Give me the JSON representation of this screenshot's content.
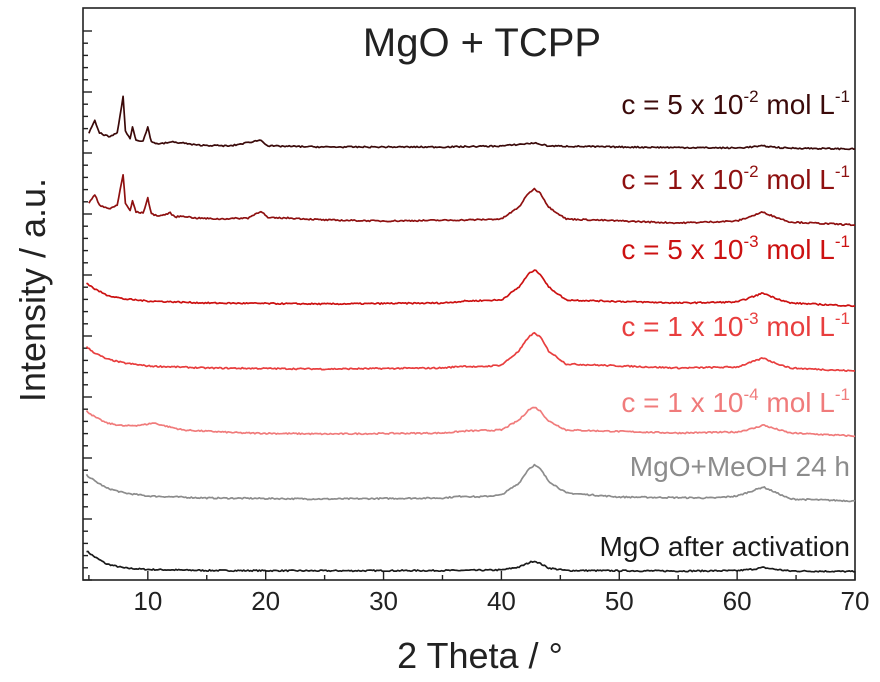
{
  "chart_data": {
    "type": "line",
    "title": "MgO + TCPP",
    "xlabel": "2 Theta / °",
    "ylabel": "Intensity / a.u.",
    "xlim": [
      4.5,
      70
    ],
    "x_ticks": [
      10,
      20,
      30,
      40,
      50,
      60,
      70
    ],
    "y_ticks_shown": false,
    "grid": false,
    "legend": "inline-labels-right",
    "series": [
      {
        "name": "MgO after activation",
        "label": {
          "prefix": "MgO after activation",
          "sup": "",
          "suffix": "",
          "sup2": ""
        },
        "color": "#1a1a1a",
        "offset": 0,
        "points": [
          [
            4.8,
            22
          ],
          [
            5.5,
            16
          ],
          [
            6.5,
            9
          ],
          [
            8,
            5
          ],
          [
            10,
            3.5
          ],
          [
            15,
            2.5
          ],
          [
            25,
            2.2
          ],
          [
            36,
            2.5
          ],
          [
            40,
            3
          ],
          [
            41.5,
            6
          ],
          [
            42.5,
            11
          ],
          [
            42.8,
            12
          ],
          [
            43.2,
            10
          ],
          [
            44,
            5
          ],
          [
            45.5,
            2.5
          ],
          [
            55,
            2
          ],
          [
            60,
            2.3
          ],
          [
            61.5,
            4
          ],
          [
            62.2,
            5.5
          ],
          [
            63,
            4
          ],
          [
            64.5,
            2
          ],
          [
            70,
            1.5
          ]
        ]
      },
      {
        "name": "MgO+MeOH 24 h",
        "label": {
          "prefix": "MgO+MeOH 24 h",
          "sup": "",
          "suffix": "",
          "sup2": ""
        },
        "color": "#8c8c8c",
        "offset": 0,
        "points": [
          [
            4.8,
            98
          ],
          [
            5.5,
            92
          ],
          [
            6.5,
            85
          ],
          [
            8,
            80
          ],
          [
            10,
            77
          ],
          [
            15,
            75
          ],
          [
            25,
            74
          ],
          [
            35,
            75
          ],
          [
            36.8,
            77
          ],
          [
            38,
            76
          ],
          [
            40,
            78
          ],
          [
            41.5,
            90
          ],
          [
            42.3,
            104
          ],
          [
            42.8,
            108
          ],
          [
            43.3,
            104
          ],
          [
            44,
            92
          ],
          [
            45.5,
            80
          ],
          [
            50,
            76
          ],
          [
            58,
            75
          ],
          [
            60,
            77
          ],
          [
            61.5,
            83
          ],
          [
            62.2,
            86
          ],
          [
            63,
            82
          ],
          [
            64.5,
            74
          ],
          [
            70,
            72
          ]
        ]
      },
      {
        "name": "c = 1 x 10-4 mol L-1",
        "label": {
          "prefix": "c = 1 x 10",
          "sup": "-4",
          "suffix": " mol L",
          "sup2": "-1"
        },
        "color": "#f07b7b",
        "offset": 0,
        "points": [
          [
            4.8,
            162
          ],
          [
            5.5,
            156
          ],
          [
            6.5,
            150
          ],
          [
            8,
            147
          ],
          [
            9.5,
            148
          ],
          [
            10.5,
            150
          ],
          [
            11.5,
            147
          ],
          [
            13,
            143
          ],
          [
            18,
            140
          ],
          [
            25,
            139
          ],
          [
            35,
            140
          ],
          [
            37,
            142
          ],
          [
            40,
            143
          ],
          [
            41.5,
            153
          ],
          [
            42.3,
            163
          ],
          [
            42.8,
            166
          ],
          [
            43.3,
            162
          ],
          [
            44,
            152
          ],
          [
            45.5,
            143
          ],
          [
            55,
            140
          ],
          [
            60,
            141
          ],
          [
            61.5,
            145
          ],
          [
            62.2,
            148
          ],
          [
            63,
            145
          ],
          [
            64.5,
            140
          ],
          [
            70,
            137
          ]
        ]
      },
      {
        "name": "c = 1 x 10-3 mol L-1",
        "label": {
          "prefix": "c = 1 x 10",
          "sup": "-3",
          "suffix": " mol L",
          "sup2": "-1"
        },
        "color": "#e83e3e",
        "offset": 0,
        "points": [
          [
            4.8,
            226
          ],
          [
            5.5,
            220
          ],
          [
            6.5,
            214
          ],
          [
            8,
            210
          ],
          [
            10,
            207
          ],
          [
            15,
            205
          ],
          [
            25,
            204
          ],
          [
            35,
            205
          ],
          [
            36.8,
            207
          ],
          [
            38,
            206
          ],
          [
            40,
            208
          ],
          [
            41.5,
            222
          ],
          [
            42.3,
            236
          ],
          [
            42.8,
            240
          ],
          [
            43.3,
            236
          ],
          [
            44,
            222
          ],
          [
            45.5,
            209
          ],
          [
            55,
            205
          ],
          [
            60,
            206
          ],
          [
            61.5,
            212
          ],
          [
            62.2,
            215
          ],
          [
            63,
            211
          ],
          [
            64.5,
            205
          ],
          [
            70,
            202
          ]
        ]
      },
      {
        "name": "c = 5 x 10-3 mol L-1",
        "label": {
          "prefix": "c = 5 x 10",
          "sup": "-3",
          "suffix": " mol L",
          "sup2": "-1"
        },
        "color": "#cc1111",
        "offset": 0,
        "points": [
          [
            4.8,
            290
          ],
          [
            5.5,
            284
          ],
          [
            6.5,
            278
          ],
          [
            8,
            274
          ],
          [
            10,
            272
          ],
          [
            15,
            270
          ],
          [
            25,
            269
          ],
          [
            35,
            270
          ],
          [
            37,
            272
          ],
          [
            40,
            273
          ],
          [
            41.5,
            286
          ],
          [
            42.3,
            299
          ],
          [
            42.8,
            303
          ],
          [
            43.3,
            299
          ],
          [
            44,
            286
          ],
          [
            45.5,
            273
          ],
          [
            55,
            270
          ],
          [
            60,
            271
          ],
          [
            61.5,
            277
          ],
          [
            62.2,
            280
          ],
          [
            63,
            276
          ],
          [
            64.5,
            270
          ],
          [
            70,
            267
          ]
        ]
      },
      {
        "name": "c = 1 x 10-2 mol L-1",
        "label": {
          "prefix": "c = 1 x 10",
          "sup": "-2",
          "suffix": " mol L",
          "sup2": "-1"
        },
        "color": "#8e1010",
        "offset": 0,
        "points": [
          [
            5,
            370
          ],
          [
            5.5,
            378
          ],
          [
            5.9,
            368
          ],
          [
            6.8,
            364
          ],
          [
            7.4,
            368
          ],
          [
            7.9,
            398
          ],
          [
            8.1,
            370
          ],
          [
            8.5,
            362
          ],
          [
            8.7,
            372
          ],
          [
            9.0,
            361
          ],
          [
            9.6,
            360
          ],
          [
            10.0,
            375
          ],
          [
            10.3,
            359
          ],
          [
            11,
            357
          ],
          [
            11.9,
            360
          ],
          [
            12.3,
            356
          ],
          [
            13,
            357
          ],
          [
            14,
            355
          ],
          [
            16,
            354
          ],
          [
            18.5,
            355
          ],
          [
            19.6,
            362
          ],
          [
            20.2,
            355
          ],
          [
            22,
            355
          ],
          [
            25,
            353
          ],
          [
            30,
            352
          ],
          [
            37,
            353
          ],
          [
            40,
            354
          ],
          [
            41.5,
            366
          ],
          [
            42.3,
            380
          ],
          [
            42.8,
            384
          ],
          [
            43.3,
            380
          ],
          [
            44,
            366
          ],
          [
            45.5,
            354
          ],
          [
            55,
            350
          ],
          [
            60,
            352
          ],
          [
            61.5,
            358
          ],
          [
            62.2,
            361
          ],
          [
            63,
            357
          ],
          [
            64.5,
            351
          ],
          [
            70,
            348
          ]
        ]
      },
      {
        "name": "c = 5 x 10-2 mol L-1",
        "label": {
          "prefix": "c = 5 x 10",
          "sup": "-2",
          "suffix": " mol L",
          "sup2": "-1"
        },
        "color": "#3b0a0a",
        "offset": 0,
        "points": [
          [
            5,
            440
          ],
          [
            5.5,
            452
          ],
          [
            5.9,
            440
          ],
          [
            6.8,
            436
          ],
          [
            7.4,
            440
          ],
          [
            7.9,
            476
          ],
          [
            8.1,
            442
          ],
          [
            8.5,
            434
          ],
          [
            8.7,
            446
          ],
          [
            9.0,
            433
          ],
          [
            9.6,
            432
          ],
          [
            10.0,
            446
          ],
          [
            10.3,
            431
          ],
          [
            11,
            429
          ],
          [
            12,
            431
          ],
          [
            13,
            430
          ],
          [
            14,
            428
          ],
          [
            17,
            427
          ],
          [
            19.6,
            433
          ],
          [
            20.2,
            427
          ],
          [
            25,
            426
          ],
          [
            35,
            426
          ],
          [
            40,
            427
          ],
          [
            42.8,
            430
          ],
          [
            44,
            427
          ],
          [
            50,
            426
          ],
          [
            60,
            425
          ],
          [
            62.2,
            427
          ],
          [
            64,
            425
          ],
          [
            70,
            424
          ]
        ]
      }
    ]
  }
}
